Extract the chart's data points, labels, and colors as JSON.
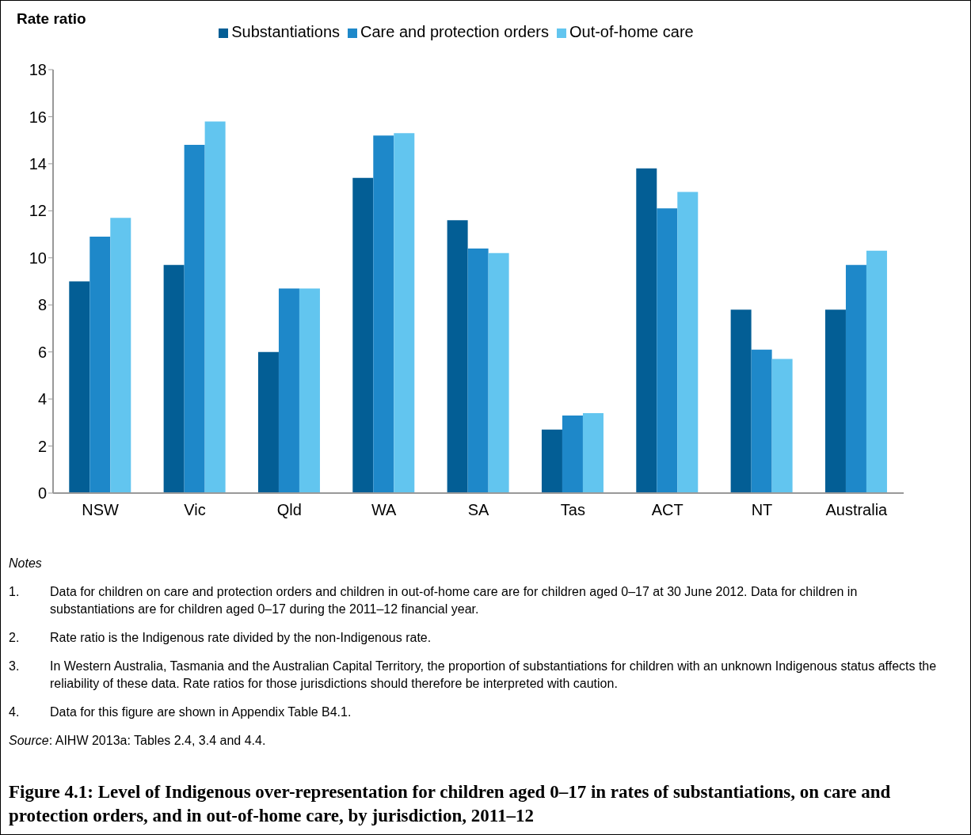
{
  "chart_data": {
    "type": "bar",
    "title": "Figure 4.1: Level of Indigenous over-representation for children aged 0–17 in rates of substantiations, on care and protection orders, and in out-of-home care, by jurisdiction, 2011–12",
    "ylabel": "Rate ratio",
    "categories": [
      "NSW",
      "Vic",
      "Qld",
      "WA",
      "SA",
      "Tas",
      "ACT",
      "NT",
      "Australia"
    ],
    "series": [
      {
        "name": "Substantiations",
        "color": "#035e95",
        "values": [
          9.0,
          9.7,
          6.0,
          13.4,
          11.6,
          2.7,
          13.8,
          7.8,
          7.8
        ]
      },
      {
        "name": "Care and protection orders",
        "color": "#1e88c9",
        "values": [
          10.9,
          14.8,
          8.7,
          15.2,
          10.4,
          3.3,
          12.1,
          6.1,
          9.7
        ]
      },
      {
        "name": "Out-of-home care",
        "color": "#62c5ef",
        "values": [
          11.7,
          15.8,
          8.7,
          15.3,
          10.2,
          3.4,
          12.8,
          5.7,
          10.3
        ]
      }
    ],
    "ylim": [
      0,
      18
    ],
    "yticks": [
      0,
      2,
      4,
      6,
      8,
      10,
      12,
      14,
      16,
      18
    ],
    "grid": false,
    "legend": "top",
    "annotations": [
      "Notes",
      "1. Data for children on care and protection orders and children in out-of-home care are for children aged 0–17 at 30 June 2012. Data for children in substantiations are for children aged 0–17 during the 2011–12 financial year.",
      "2. Rate ratio is the Indigenous rate divided by the non-Indigenous rate.",
      "3. In Western Australia, Tasmania and the Australian Capital Territory, the proportion of substantiations for children with an unknown Indigenous status affects the reliability of these data. Rate ratios for those jurisdictions should therefore be interpreted with caution.",
      "4. Data for this figure are shown in Appendix Table B4.1.",
      "Source: AIHW 2013a: Tables 2.4, 3.4 and 4.4."
    ]
  }
}
